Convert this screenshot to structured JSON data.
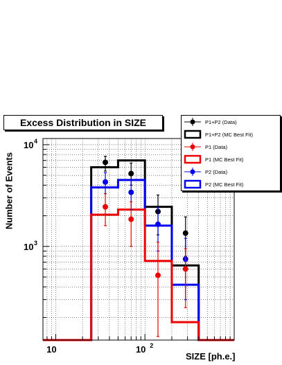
{
  "title": "Excess Distribution in SIZE",
  "chart_data": {
    "type": "histogram",
    "xlabel": "SIZE [ph.e.]",
    "ylabel": "Number of Events",
    "xscale": "log",
    "yscale": "log",
    "xlim": [
      7.2,
      1000
    ],
    "ylim": [
      120,
      11500
    ],
    "grid": true,
    "legend_placement": "top-right",
    "bin_edges": [
      25,
      50,
      100,
      200,
      400
    ],
    "x_tick_labels": [
      {
        "value": 10,
        "base": "10",
        "exp": ""
      },
      {
        "value": 100,
        "base": "10",
        "exp": "2"
      }
    ],
    "y_tick_labels": [
      {
        "value": 1000,
        "base": "10",
        "exp": "3"
      },
      {
        "value": 10000,
        "base": "10",
        "exp": "4"
      }
    ],
    "histograms": [
      {
        "name": "P1+P2 (MC Best Fit)",
        "color": "#000000",
        "values": [
          6000,
          7000,
          2450,
          650
        ]
      },
      {
        "name": "P2 (MC Best Fit)",
        "color": "#0000ee",
        "values": [
          3800,
          4500,
          1600,
          420
        ]
      },
      {
        "name": "P1 (MC Best Fit)",
        "color": "#ee0000",
        "values": [
          2050,
          2300,
          720,
          180
        ]
      }
    ],
    "points": [
      {
        "name": "P1+P2 (Data)",
        "color": "#000000",
        "x": [
          36,
          70,
          140,
          285
        ],
        "y": [
          6700,
          5200,
          2200,
          1350
        ],
        "yerr_low": [
          5500,
          4000,
          1300,
          800
        ],
        "yerr_high": [
          7700,
          6600,
          3200,
          1950
        ]
      },
      {
        "name": "P2 (Data)",
        "color": "#0000ee",
        "x": [
          36,
          70,
          140,
          285
        ],
        "y": [
          4300,
          3400,
          1650,
          750
        ],
        "yerr_low": [
          3300,
          2300,
          900,
          300
        ],
        "yerr_high": [
          5300,
          4500,
          2400,
          1200
        ]
      },
      {
        "name": "P1 (Data)",
        "color": "#ee0000",
        "x": [
          36,
          70,
          140,
          285
        ],
        "y": [
          2450,
          1850,
          520,
          600
        ],
        "yerr_low": [
          1600,
          1000,
          130,
          250
        ],
        "yerr_high": [
          3300,
          2750,
          1100,
          950
        ]
      }
    ],
    "legend": [
      {
        "label": "P1+P2 (Data)",
        "kind": "marker",
        "color": "#000000"
      },
      {
        "label": "P1+P2 (MC Best Fit)",
        "kind": "box",
        "color": "#000000"
      },
      {
        "label": "P1 (Data)",
        "kind": "marker",
        "color": "#ee0000"
      },
      {
        "label": "P1 (MC Best Fit)",
        "kind": "box",
        "color": "#ee0000"
      },
      {
        "label": "P2 (Data)",
        "kind": "marker",
        "color": "#0000ee"
      },
      {
        "label": "P2 (MC Best Fit)",
        "kind": "box",
        "color": "#0000ee"
      }
    ]
  }
}
